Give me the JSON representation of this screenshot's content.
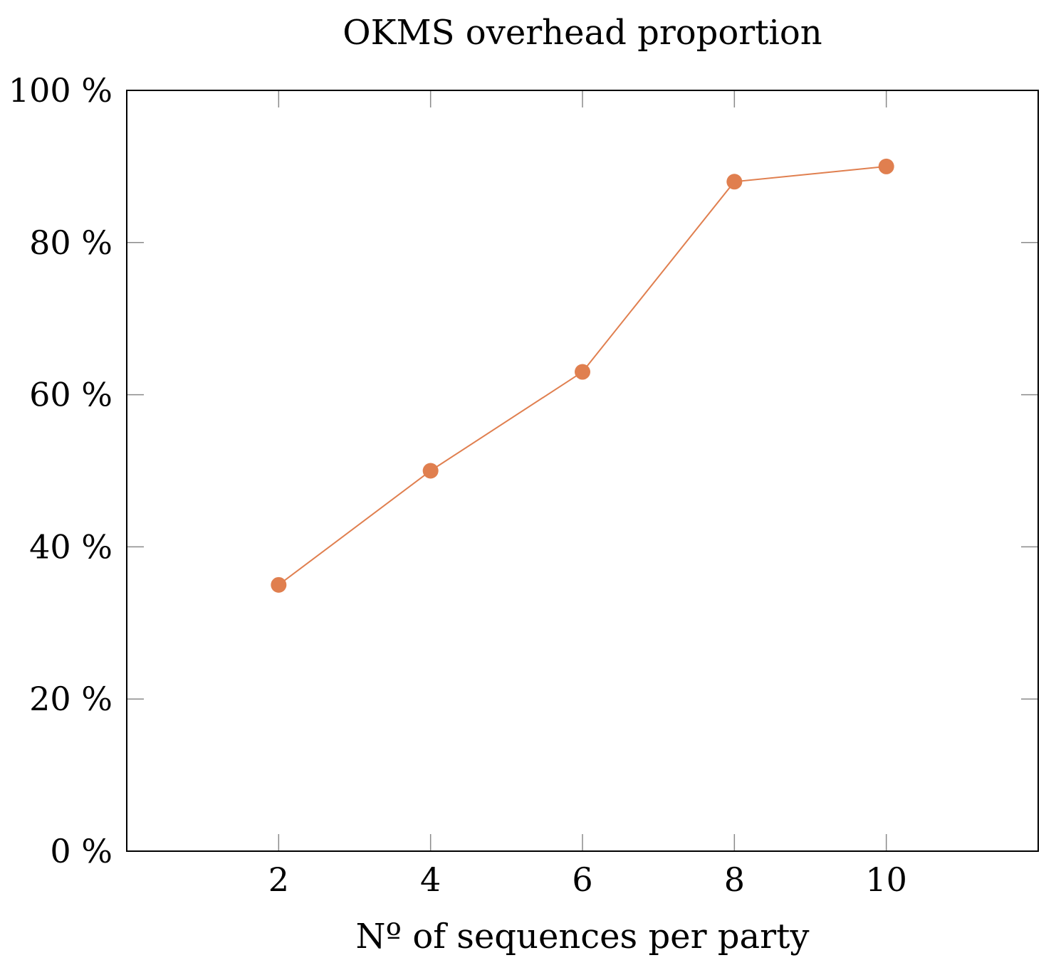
{
  "chart_data": {
    "type": "line",
    "title": "OKMS overhead proportion",
    "xlabel": "Nº of sequences per party",
    "ylabel": "",
    "x": [
      2,
      4,
      6,
      8,
      10
    ],
    "series": [
      {
        "values": [
          35,
          50,
          63,
          88,
          90
        ]
      }
    ],
    "xlim": [
      0,
      12
    ],
    "ylim": [
      0,
      100
    ],
    "xticks": [
      2,
      4,
      6,
      8,
      10
    ],
    "xtick_labels": [
      "2",
      "4",
      "6",
      "8",
      "10"
    ],
    "yticks": [
      0,
      20,
      40,
      60,
      80,
      100
    ],
    "ytick_labels": [
      "0 %",
      "20 %",
      "40 %",
      "60 %",
      "80 %",
      "100 %"
    ],
    "grid": false,
    "colors": {
      "series": "#e07f4f",
      "frame": "#000000",
      "tick": "#8a8a8a"
    }
  }
}
